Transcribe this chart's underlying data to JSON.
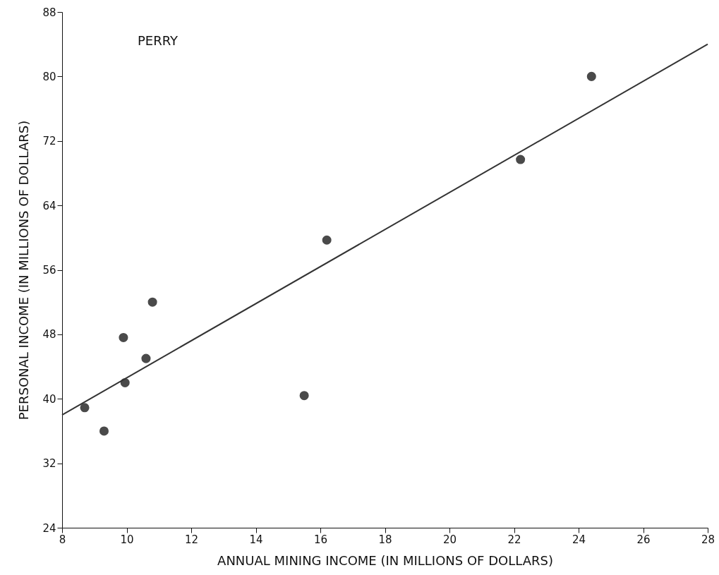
{
  "chart_data": {
    "type": "scatter",
    "xlabel": "ANNUAL  MINING  INCOME  (IN MILLIONS OF DOLLARS)",
    "ylabel": "PERSONAL  INCOME  (IN MILLIONS OF DOLLARS)",
    "annotations": [
      "PERRY"
    ],
    "xlim": [
      8,
      28
    ],
    "xticks": [
      8,
      10,
      12,
      14,
      16,
      18,
      20,
      22,
      24,
      26,
      28
    ],
    "ylim": [
      24,
      88
    ],
    "yticks": [
      24,
      32,
      40,
      48,
      56,
      64,
      72,
      80,
      88
    ],
    "grid": false,
    "marker": "circle",
    "series": [
      {
        "color": "#4a4a4a",
        "x": [
          8.7,
          9.3,
          9.9,
          9.95,
          10.6,
          10.8,
          15.5,
          16.2,
          22.2,
          24.4
        ],
        "values": [
          38.9,
          36.0,
          47.6,
          42.0,
          45.0,
          52.0,
          40.4,
          59.7,
          69.7,
          80.0
        ]
      },
      {
        "type": "line",
        "color": "#333333",
        "line_style": "solid",
        "marker": "none",
        "x": [
          8,
          28
        ],
        "values": [
          38.0,
          84.0
        ]
      }
    ]
  }
}
